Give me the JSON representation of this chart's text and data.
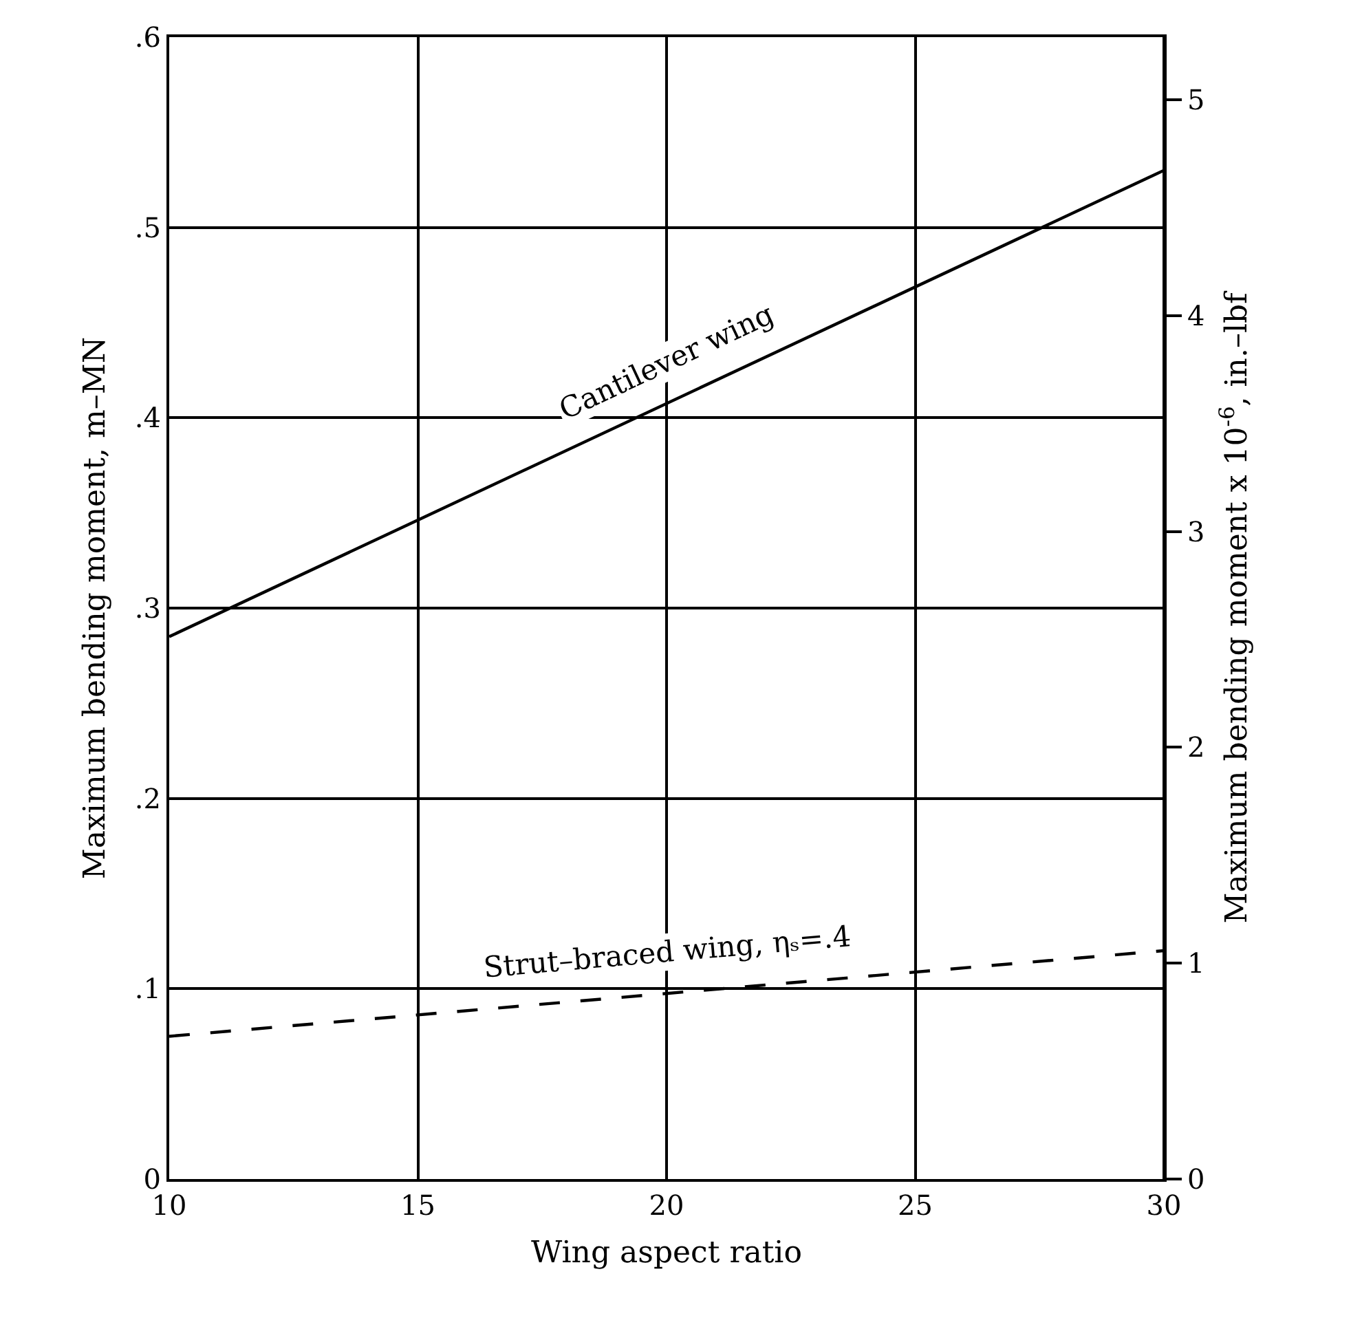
{
  "chart_data": {
    "type": "line",
    "xlabel": "Wing aspect ratio",
    "ylabel": "Maximum bending moment, m–MN",
    "y2label": "Maximum bending moment x 10$^{-6}$, in.–lbf",
    "x": [
      10,
      30
    ],
    "xlim": [
      10,
      30
    ],
    "xticks": [
      10,
      15,
      20,
      25,
      30
    ],
    "ylim": [
      0,
      0.6
    ],
    "yticks": [
      {
        "value": 0,
        "label": "0"
      },
      {
        "value": 0.1,
        "label": ".1"
      },
      {
        "value": 0.2,
        "label": ".2"
      },
      {
        "value": 0.3,
        "label": ".3"
      },
      {
        "value": 0.4,
        "label": ".4"
      },
      {
        "value": 0.5,
        "label": ".5"
      },
      {
        "value": 0.6,
        "label": ".6"
      }
    ],
    "y2lim": [
      0,
      5.29
    ],
    "y2ticks": [
      0,
      1,
      2,
      3,
      4,
      5
    ],
    "grid": true,
    "legend": false,
    "marker": "none",
    "series": [
      {
        "name": "Cantilever wing",
        "color": "#000000",
        "values": [
          0.285,
          0.53
        ],
        "line_style": "solid"
      },
      {
        "name": "Strut–braced wing, ηₛ=.4",
        "color": "#000000",
        "values": [
          0.075,
          0.12
        ],
        "line_style": "dashed"
      }
    ]
  }
}
